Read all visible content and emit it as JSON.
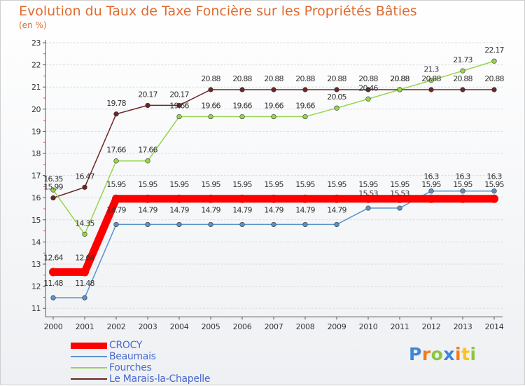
{
  "chart_data": {
    "type": "line",
    "title": "Evolution du Taux de Taxe Foncière sur les Propriétés Bâties",
    "subtitle": "(en %)",
    "categories": [
      "2000",
      "2001",
      "2002",
      "2003",
      "2004",
      "2005",
      "2006",
      "2007",
      "2008",
      "2009",
      "2010",
      "2011",
      "2012",
      "2013",
      "2014"
    ],
    "ylim": [
      11,
      23
    ],
    "yticks": [
      "11",
      "12",
      "13",
      "14",
      "15",
      "16",
      "17",
      "18",
      "19",
      "20",
      "21",
      "22",
      "23"
    ],
    "grid": "horizontal",
    "series": [
      {
        "name": "CROCY",
        "color": "#ff0000",
        "values": [
          12.64,
          12.64,
          15.95,
          15.95,
          15.95,
          15.95,
          15.95,
          15.95,
          15.95,
          15.95,
          15.95,
          15.95,
          15.95,
          15.95,
          15.95
        ],
        "labels": [
          "12.64",
          "12.64",
          "15.95",
          "15.95",
          "15.95",
          "15.95",
          "15.95",
          "15.95",
          "15.95",
          "15.95",
          "15.95",
          "15.95",
          "15.95",
          "15.95",
          "15.95"
        ]
      },
      {
        "name": "Beaumais",
        "color": "#5b93c9",
        "values": [
          11.48,
          11.48,
          14.79,
          14.79,
          14.79,
          14.79,
          14.79,
          14.79,
          14.79,
          14.79,
          15.53,
          15.53,
          16.3,
          16.3,
          16.3
        ],
        "labels": [
          "11.48",
          "11.48",
          "14.79",
          "14.79",
          "14.79",
          "14.79",
          "14.79",
          "14.79",
          "14.79",
          "14.79",
          "15.53",
          "15.53",
          "16.3",
          "16.3",
          "16.3"
        ]
      },
      {
        "name": "Fourches",
        "color": "#99d54d",
        "values": [
          16.35,
          14.35,
          17.66,
          17.66,
          19.66,
          19.66,
          19.66,
          19.66,
          19.66,
          20.05,
          20.46,
          20.88,
          21.3,
          21.73,
          22.17
        ],
        "labels": [
          "16.35",
          "14.35",
          "17.66",
          "17.66",
          "19.66",
          "19.66",
          "19.66",
          "19.66",
          "19.66",
          "20.05",
          "20.46",
          "20.88",
          "21.3",
          "21.73",
          "22.17"
        ]
      },
      {
        "name": "Le Marais-la-Chapelle",
        "color": "#6b2626",
        "values": [
          15.99,
          16.47,
          19.78,
          20.17,
          20.17,
          20.88,
          20.88,
          20.88,
          20.88,
          20.88,
          20.88,
          20.88,
          20.88,
          20.88,
          20.88
        ],
        "labels": [
          "15.99",
          "16.47",
          "19.78",
          "20.17",
          "20.17",
          "20.88",
          "20.88",
          "20.88",
          "20.88",
          "20.88",
          "20.88",
          "20.88",
          "20.88",
          "20.88",
          "20.88"
        ]
      }
    ]
  },
  "legend": {
    "items": [
      {
        "label": "CROCY",
        "color": "#ff0000"
      },
      {
        "label": "Beaumais",
        "color": "#5b93c9"
      },
      {
        "label": "Fourches",
        "color": "#99d54d"
      },
      {
        "label": "Le Marais-la-Chapelle",
        "color": "#6b2626"
      }
    ]
  },
  "logo": {
    "letters": [
      "P",
      "r",
      "o",
      "x",
      "i",
      "t",
      "i"
    ],
    "colors": [
      "#3d86d8",
      "#f27c1c",
      "#8dc63f",
      "#3d86d8",
      "#f27c1c",
      "#ffc21c",
      "#8dc63f"
    ]
  }
}
